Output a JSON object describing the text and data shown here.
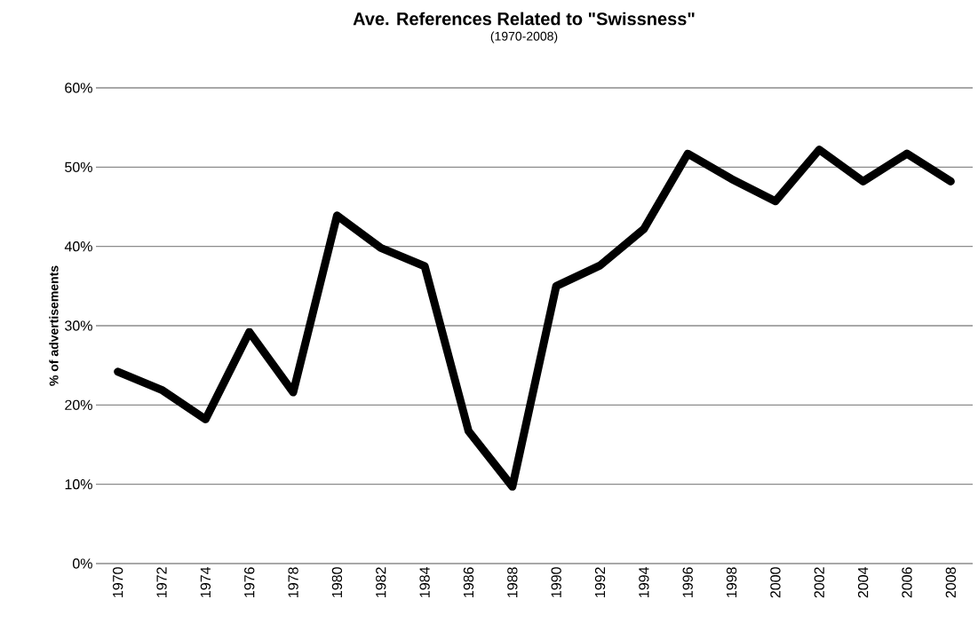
{
  "chart_data": {
    "type": "line",
    "title": "Ave. References Related to \"Swissness\"",
    "subtitle": "(1970-2008)",
    "ylabel": "% of advertisements",
    "categories": [
      "1970",
      "1972",
      "1974",
      "1976",
      "1978",
      "1980",
      "1982",
      "1984",
      "1986",
      "1988",
      "1990",
      "1992",
      "1994",
      "1996",
      "1998",
      "2000",
      "2002",
      "2004",
      "2006",
      "2008"
    ],
    "series": [
      {
        "color": "#000000",
        "values": [
          24.2,
          21.9,
          18.2,
          29.2,
          21.6,
          43.9,
          39.8,
          37.5,
          16.7,
          9.7,
          35.0,
          37.6,
          42.2,
          51.7,
          48.5,
          45.7,
          52.2,
          48.2,
          51.7,
          48.2
        ]
      }
    ],
    "ylim": [
      0,
      60
    ],
    "yticks": [
      {
        "value": 0,
        "label": "0%"
      },
      {
        "value": 10,
        "label": "10%"
      },
      {
        "value": 20,
        "label": "20%"
      },
      {
        "value": 30,
        "label": "30%"
      },
      {
        "value": 40,
        "label": "40%"
      },
      {
        "value": 50,
        "label": "50%"
      },
      {
        "value": 60,
        "label": "60%"
      }
    ],
    "grid": "y"
  }
}
